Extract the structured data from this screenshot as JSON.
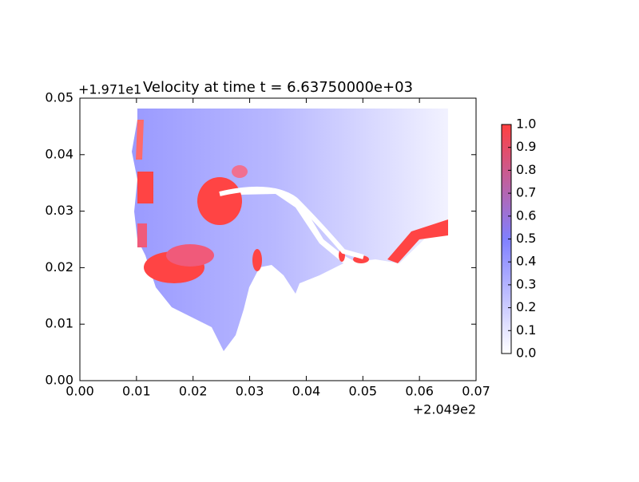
{
  "chart_data": {
    "type": "heatmap",
    "title": "Velocity at time t = 6.63750000e+03",
    "x_offset_label": "+2.049e2",
    "y_offset_label": "+1.971e1",
    "xlim": [
      0,
      0.07
    ],
    "xticks": [
      {
        "value": 0,
        "label": "0.00"
      },
      {
        "value": 0.01,
        "label": "0.01"
      },
      {
        "value": 0.02,
        "label": "0.02"
      },
      {
        "value": 0.03,
        "label": "0.03"
      },
      {
        "value": 0.04,
        "label": "0.04"
      },
      {
        "value": 0.05,
        "label": "0.05"
      },
      {
        "value": 0.06,
        "label": "0.06"
      },
      {
        "value": 0.07,
        "label": "0.07"
      }
    ],
    "ylim": [
      0,
      0.05
    ],
    "yticks": [
      {
        "value": 0,
        "label": "0.00"
      },
      {
        "value": 0.01,
        "label": "0.01"
      },
      {
        "value": 0.02,
        "label": "0.02"
      },
      {
        "value": 0.03,
        "label": "0.03"
      },
      {
        "value": 0.04,
        "label": "0.04"
      },
      {
        "value": 0.05,
        "label": "0.05"
      }
    ],
    "colormap": [
      "#ffffff",
      "#8080ff",
      "#ff4040"
    ],
    "clim": [
      0,
      1
    ],
    "cticks": [
      {
        "value": 0,
        "label": "0.0"
      },
      {
        "value": 0.1,
        "label": "0.1"
      },
      {
        "value": 0.2,
        "label": "0.2"
      },
      {
        "value": 0.3,
        "label": "0.3"
      },
      {
        "value": 0.4,
        "label": "0.4"
      },
      {
        "value": 0.5,
        "label": "0.5"
      },
      {
        "value": 0.6,
        "label": "0.6"
      },
      {
        "value": 0.7,
        "label": "0.7"
      },
      {
        "value": 0.8,
        "label": "0.8"
      },
      {
        "value": 0.9,
        "label": "0.9"
      },
      {
        "value": 1,
        "label": "1.0"
      }
    ]
  }
}
